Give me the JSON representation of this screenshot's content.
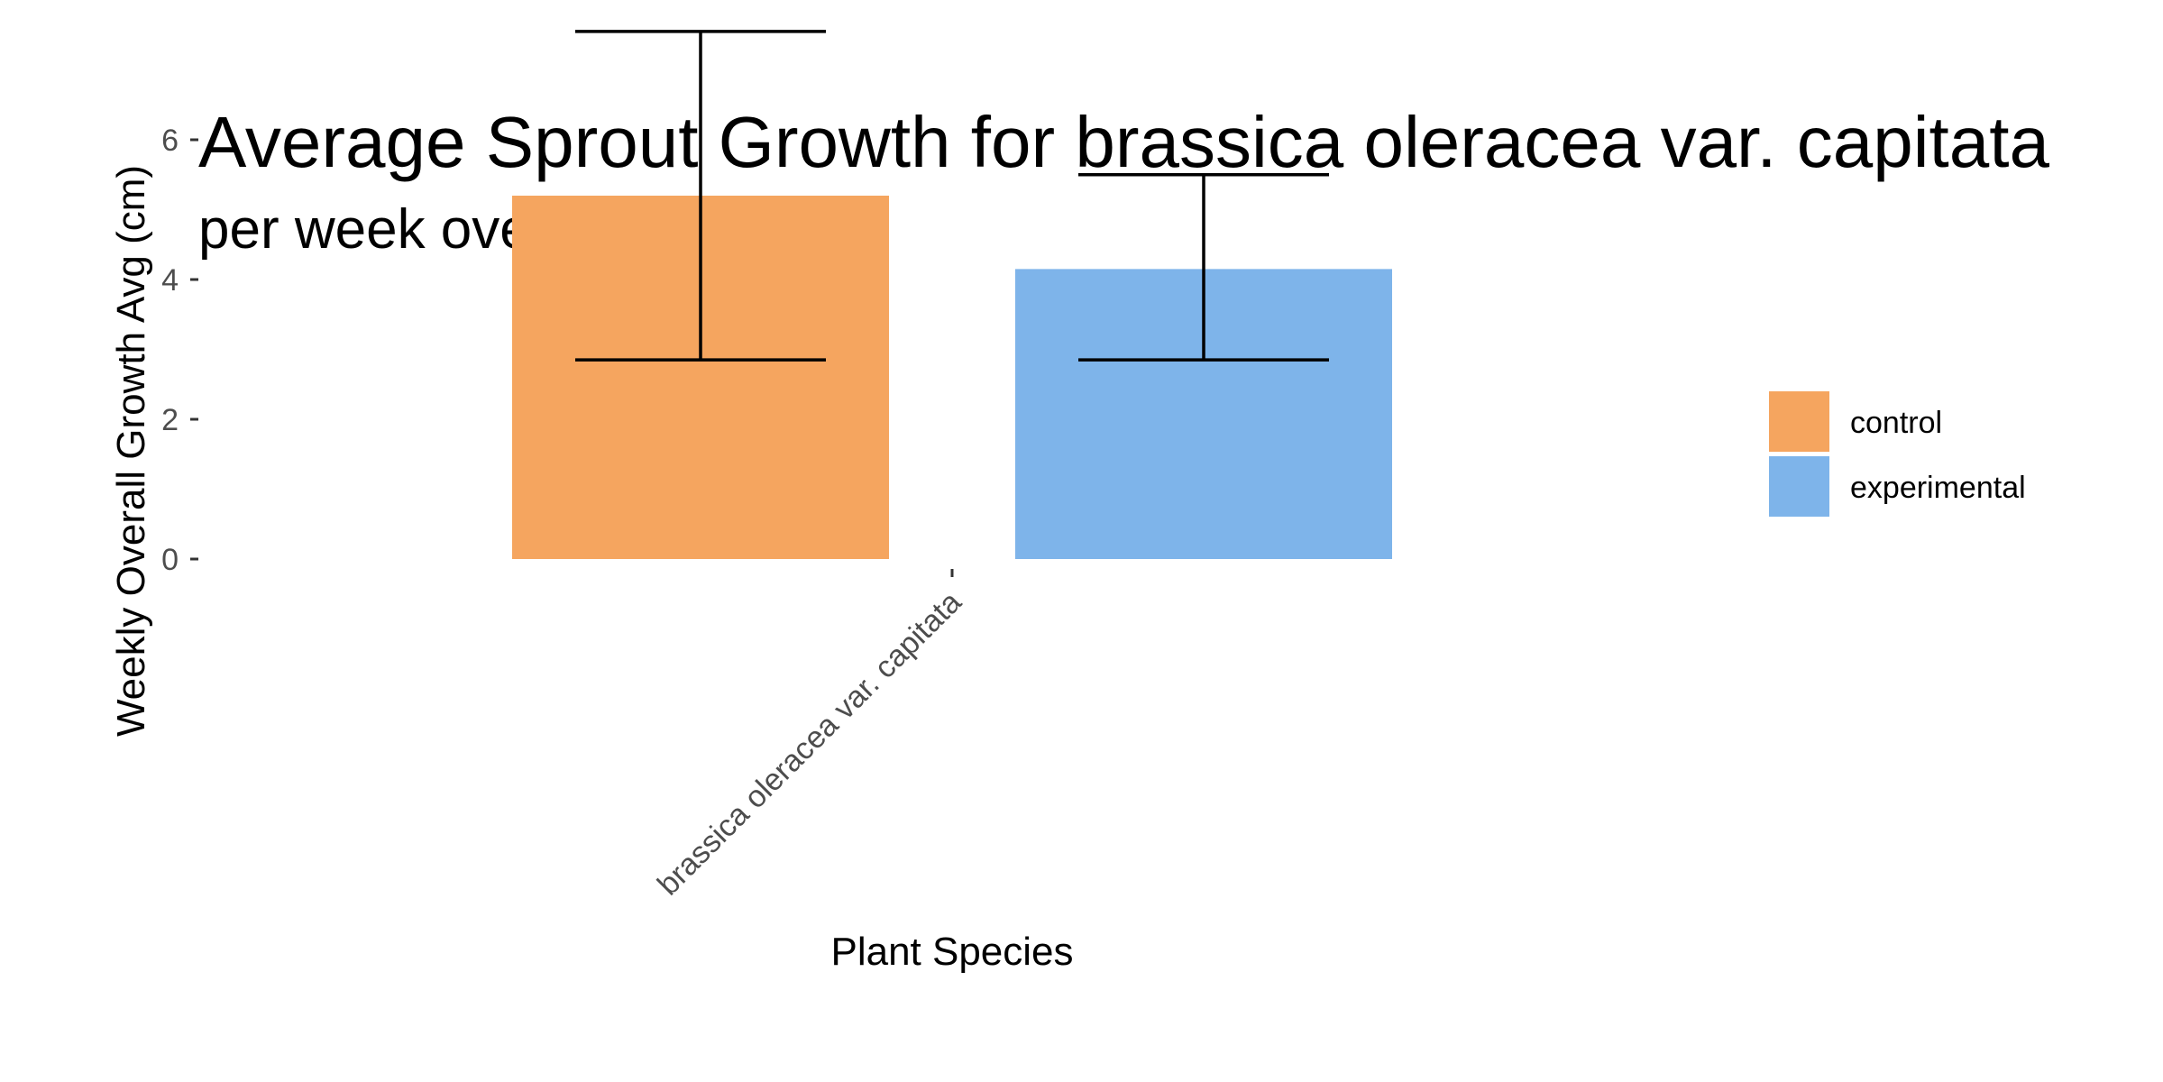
{
  "chart_data": {
    "type": "bar",
    "title": "Average Sprout Growth for brassica oleracea var. capitata",
    "subtitle": "per week over 4 weeks",
    "xlabel": "Plant Species",
    "ylabel": "Weekly Overall Growth Avg (cm)",
    "categories": [
      "brassica oleracea var. capitata"
    ],
    "yticks": [
      0,
      2,
      4,
      6
    ],
    "ylim": [
      0,
      7.6
    ],
    "grid": false,
    "legend_position": "right",
    "series": [
      {
        "name": "control",
        "color": "#F5A55F",
        "values": [
          5.2
        ],
        "error_low": [
          2.85
        ],
        "error_high": [
          7.55
        ]
      },
      {
        "name": "experimental",
        "color": "#7EB4EA",
        "values": [
          4.15
        ],
        "error_low": [
          2.85
        ],
        "error_high": [
          5.5
        ]
      }
    ]
  }
}
